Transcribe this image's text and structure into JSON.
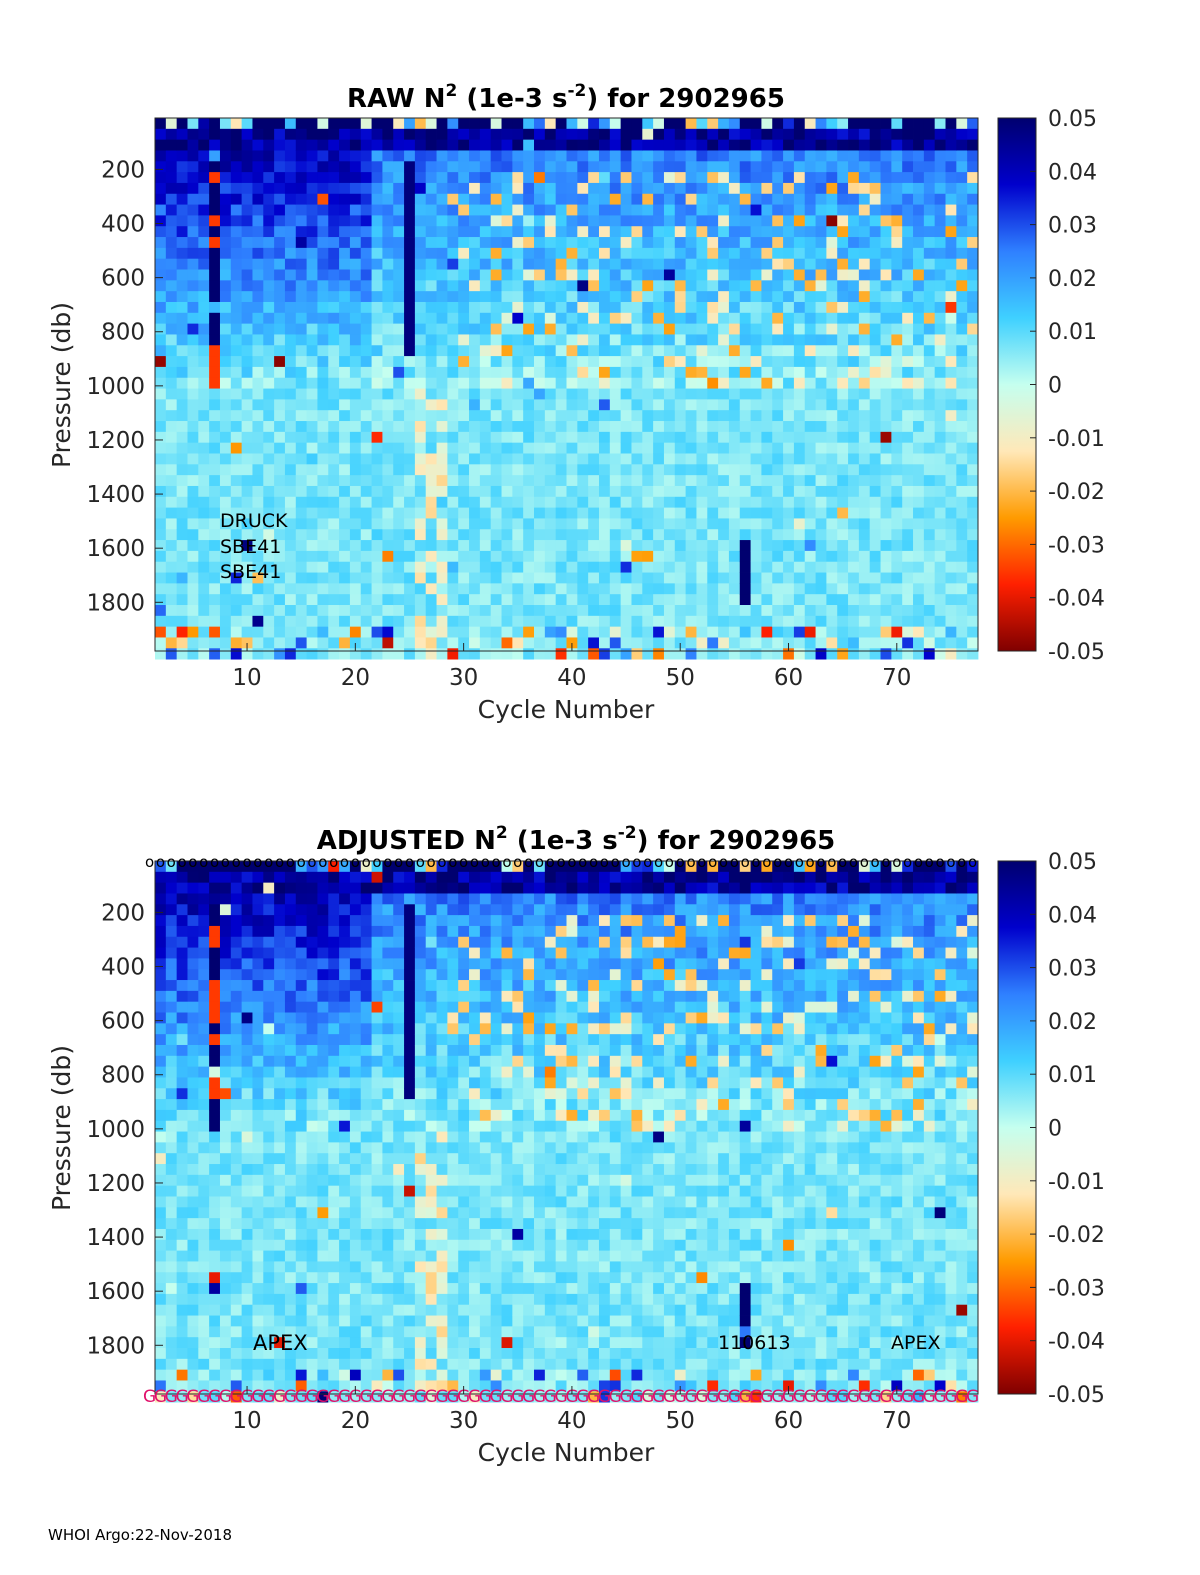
{
  "footer": "WHOI Argo:22-Nov-2018",
  "chart_data": [
    {
      "type": "heatmap",
      "title_prefix": "RAW N",
      "title_sup1": "2",
      "title_mid": " (1e-3 s",
      "title_sup2": "-2",
      "title_suffix": ") for 2902965",
      "xlabel": "Cycle Number",
      "ylabel": "Pressure (db)",
      "xlim": [
        1.5,
        77.5
      ],
      "ylim": [
        1980,
        10
      ],
      "xticks": [
        "10",
        "20",
        "30",
        "40",
        "50",
        "60",
        "70"
      ],
      "yticks": [
        "200",
        "400",
        "600",
        "800",
        "1000",
        "1200",
        "1400",
        "1600",
        "1800"
      ],
      "colorbar": {
        "range": [
          -0.05,
          0.05
        ],
        "ticks": [
          "0.05",
          "0.04",
          "0.03",
          "0.02",
          "0.01",
          "0",
          "-0.01",
          "-0.02",
          "-0.03",
          "-0.04",
          "-0.05"
        ],
        "colormap": [
          "#7f0000",
          "#ff2000",
          "#ff9b00",
          "#ffe8b8",
          "#c5ffef",
          "#3fd0ff",
          "#2f80ff",
          "#0000cc",
          "#00006f"
        ]
      },
      "annotations": [
        "DRUCK",
        "SBE41",
        "SBE41"
      ],
      "flag_row_top": null,
      "flag_row_bottom": null
    },
    {
      "type": "heatmap",
      "title_prefix": "ADJUSTED N",
      "title_sup1": "2",
      "title_mid": " (1e-3 s",
      "title_sup2": "-2",
      "title_suffix": ") for 2902965",
      "xlabel": "Cycle Number",
      "ylabel": "Pressure (db)",
      "xlim": [
        1.5,
        77.5
      ],
      "ylim": [
        1980,
        10
      ],
      "xticks": [
        "10",
        "20",
        "30",
        "40",
        "50",
        "60",
        "70"
      ],
      "yticks": [
        "200",
        "400",
        "600",
        "800",
        "1000",
        "1200",
        "1400",
        "1600",
        "1800"
      ],
      "colorbar": {
        "range": [
          -0.05,
          0.05
        ],
        "ticks": [
          "0.05",
          "0.04",
          "0.03",
          "0.02",
          "0.01",
          "0",
          "-0.01",
          "-0.02",
          "-0.03",
          "-0.04",
          "-0.05"
        ],
        "colormap": [
          "#7f0000",
          "#ff2000",
          "#ff9b00",
          "#ffe8b8",
          "#c5ffef",
          "#3fd0ff",
          "#2f80ff",
          "#0000cc",
          "#00006f"
        ]
      },
      "annotations": [
        "APEX",
        "110613",
        "APEX"
      ],
      "flag_row_top": {
        "symbol": "o",
        "color": "#000000",
        "count": 77
      },
      "flag_row_bottom": {
        "symbol": "G",
        "color": "#e0106a",
        "count": 77
      }
    }
  ]
}
